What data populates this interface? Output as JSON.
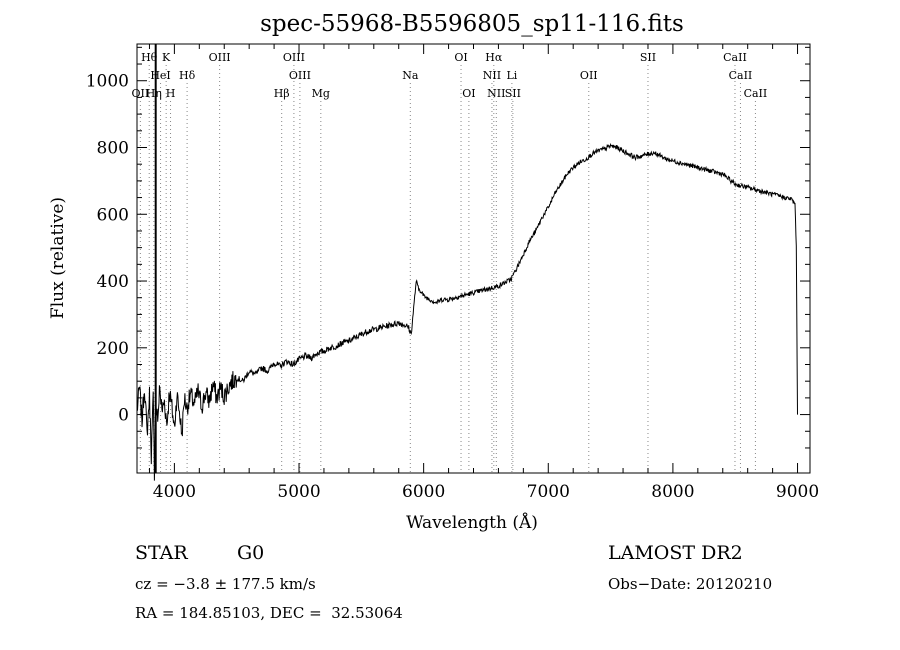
{
  "chart_data": {
    "type": "line",
    "title": "spec-55968-B5596805_sp11-116.fits",
    "xlabel": "Wavelength (Å)",
    "ylabel": "Flux (relative)",
    "xlim": [
      3700,
      9100
    ],
    "ylim": [
      -175,
      1110
    ],
    "xticks": [
      4000,
      5000,
      6000,
      7000,
      8000,
      9000
    ],
    "yticks": [
      0,
      200,
      400,
      600,
      800,
      1000
    ],
    "series": [
      {
        "points": [
          [
            3700,
            10
          ],
          [
            3720,
            80
          ],
          [
            3740,
            -20
          ],
          [
            3760,
            90
          ],
          [
            3780,
            -60
          ],
          [
            3800,
            60
          ],
          [
            3815,
            -120
          ],
          [
            3830,
            50
          ],
          [
            3840,
            -170
          ],
          [
            3850,
            30
          ],
          [
            3870,
            -20
          ],
          [
            3880,
            90
          ],
          [
            3900,
            10
          ],
          [
            3920,
            40
          ],
          [
            3940,
            -30
          ],
          [
            3960,
            70
          ],
          [
            3980,
            20
          ],
          [
            4000,
            -40
          ],
          [
            4020,
            60
          ],
          [
            4040,
            10
          ],
          [
            4060,
            -60
          ],
          [
            4080,
            50
          ],
          [
            4100,
            20
          ],
          [
            4130,
            60
          ],
          [
            4160,
            30
          ],
          [
            4190,
            70
          ],
          [
            4220,
            25
          ],
          [
            4250,
            65
          ],
          [
            4280,
            40
          ],
          [
            4310,
            90
          ],
          [
            4340,
            50
          ],
          [
            4370,
            80
          ],
          [
            4400,
            55
          ],
          [
            4450,
            95
          ],
          [
            4500,
            110
          ],
          [
            4550,
            100
          ],
          [
            4600,
            130
          ],
          [
            4650,
            120
          ],
          [
            4700,
            140
          ],
          [
            4750,
            130
          ],
          [
            4800,
            155
          ],
          [
            4850,
            145
          ],
          [
            4900,
            160
          ],
          [
            4950,
            150
          ],
          [
            5000,
            165
          ],
          [
            5050,
            175
          ],
          [
            5100,
            170
          ],
          [
            5150,
            185
          ],
          [
            5200,
            190
          ],
          [
            5250,
            200
          ],
          [
            5300,
            205
          ],
          [
            5350,
            215
          ],
          [
            5400,
            220
          ],
          [
            5450,
            230
          ],
          [
            5500,
            240
          ],
          [
            5550,
            250
          ],
          [
            5600,
            255
          ],
          [
            5650,
            260
          ],
          [
            5700,
            265
          ],
          [
            5750,
            270
          ],
          [
            5800,
            275
          ],
          [
            5850,
            268
          ],
          [
            5880,
            260
          ],
          [
            5900,
            240
          ],
          [
            5920,
            320
          ],
          [
            5940,
            400
          ],
          [
            5960,
            375
          ],
          [
            5980,
            370
          ],
          [
            6000,
            355
          ],
          [
            6050,
            345
          ],
          [
            6100,
            335
          ],
          [
            6150,
            345
          ],
          [
            6200,
            345
          ],
          [
            6250,
            350
          ],
          [
            6300,
            355
          ],
          [
            6350,
            360
          ],
          [
            6400,
            365
          ],
          [
            6450,
            370
          ],
          [
            6500,
            375
          ],
          [
            6550,
            380
          ],
          [
            6600,
            385
          ],
          [
            6650,
            395
          ],
          [
            6700,
            405
          ],
          [
            6750,
            440
          ],
          [
            6800,
            480
          ],
          [
            6850,
            520
          ],
          [
            6900,
            550
          ],
          [
            6950,
            590
          ],
          [
            7000,
            620
          ],
          [
            7050,
            660
          ],
          [
            7100,
            690
          ],
          [
            7150,
            720
          ],
          [
            7200,
            740
          ],
          [
            7250,
            755
          ],
          [
            7300,
            765
          ],
          [
            7350,
            780
          ],
          [
            7400,
            790
          ],
          [
            7450,
            795
          ],
          [
            7500,
            805
          ],
          [
            7550,
            800
          ],
          [
            7600,
            790
          ],
          [
            7650,
            780
          ],
          [
            7700,
            770
          ],
          [
            7750,
            775
          ],
          [
            7800,
            780
          ],
          [
            7850,
            785
          ],
          [
            7900,
            775
          ],
          [
            7950,
            765
          ],
          [
            8000,
            760
          ],
          [
            8050,
            755
          ],
          [
            8100,
            750
          ],
          [
            8150,
            745
          ],
          [
            8200,
            740
          ],
          [
            8250,
            735
          ],
          [
            8300,
            730
          ],
          [
            8350,
            725
          ],
          [
            8400,
            720
          ],
          [
            8450,
            705
          ],
          [
            8500,
            690
          ],
          [
            8550,
            685
          ],
          [
            8600,
            680
          ],
          [
            8650,
            675
          ],
          [
            8700,
            670
          ],
          [
            8750,
            665
          ],
          [
            8800,
            660
          ],
          [
            8850,
            655
          ],
          [
            8900,
            650
          ],
          [
            8950,
            645
          ],
          [
            8980,
            630
          ],
          [
            8990,
            500
          ],
          [
            9000,
            0
          ]
        ]
      }
    ],
    "markers": [
      {
        "label": "Hθ",
        "x": 3798,
        "row": 0
      },
      {
        "label": "K",
        "x": 3934,
        "row": 0
      },
      {
        "label": "HeI",
        "x": 3889,
        "row": 1
      },
      {
        "label": "Hδ",
        "x": 4102,
        "row": 1
      },
      {
        "label": "OII",
        "x": 3727,
        "row": 2
      },
      {
        "label": "Hη",
        "x": 3835,
        "row": 2
      },
      {
        "label": "H",
        "x": 3969,
        "row": 2
      },
      {
        "label": "OIII",
        "x": 4363,
        "row": 0
      },
      {
        "label": "OIII",
        "x": 4959,
        "row": 0
      },
      {
        "label": "OIII",
        "x": 5007,
        "row": 1
      },
      {
        "label": "Hβ",
        "x": 4861,
        "row": 2
      },
      {
        "label": "Mg",
        "x": 5175,
        "row": 2
      },
      {
        "label": "Na",
        "x": 5893,
        "row": 1
      },
      {
        "label": "OI",
        "x": 6300,
        "row": 0
      },
      {
        "label": "OI",
        "x": 6363,
        "row": 2
      },
      {
        "label": "Hα",
        "x": 6563,
        "row": 0
      },
      {
        "label": "NII",
        "x": 6548,
        "row": 1
      },
      {
        "label": "Li",
        "x": 6708,
        "row": 1
      },
      {
        "label": "NII",
        "x": 6583,
        "row": 2
      },
      {
        "label": "SII",
        "x": 6716,
        "row": 2
      },
      {
        "label": "OII",
        "x": 7325,
        "row": 1
      },
      {
        "label": "SII",
        "x": 7800,
        "row": 0
      },
      {
        "label": "CaII",
        "x": 8498,
        "row": 0
      },
      {
        "label": "CaII",
        "x": 8542,
        "row": 1
      },
      {
        "label": "CaII",
        "x": 8662,
        "row": 2
      }
    ]
  },
  "footer": {
    "object_class": "STAR",
    "subclass": "G0",
    "survey": "LAMOST DR2",
    "cz": "cz = −3.8 ± 177.5 km/s",
    "obs_date": "Obs−Date: 20120210",
    "coords": "RA = 184.85103, DEC =  32.53064"
  }
}
